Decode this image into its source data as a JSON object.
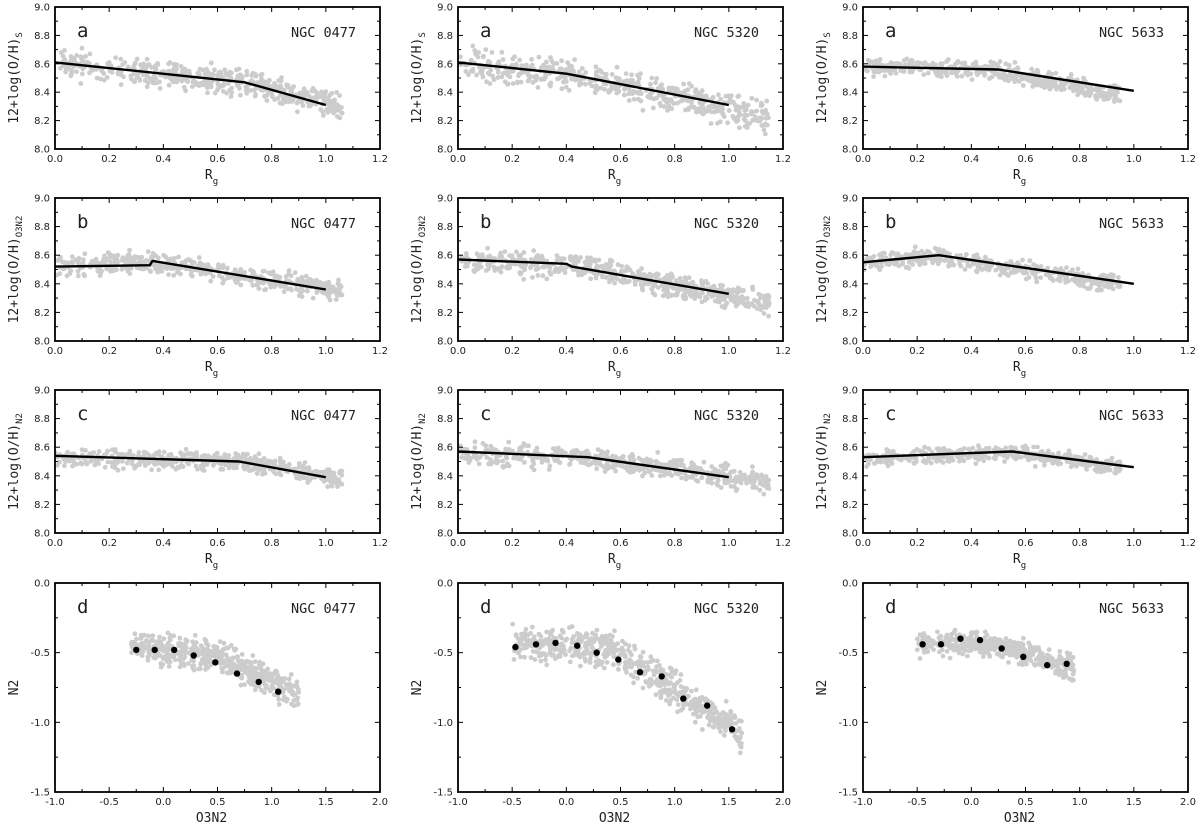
{
  "figure": {
    "galaxies": [
      "NGC 0477",
      "NGC 5320",
      "NGC 5633"
    ],
    "rows": [
      "a",
      "b",
      "c",
      "d"
    ]
  },
  "chart_data": [
    {
      "id": "a-0477",
      "type": "scatter",
      "panel": "a",
      "title": "NGC 0477",
      "xlabel": "R",
      "xlabel_sub": "g",
      "ylabel": "12+log(O/H)",
      "ylabel_sub": "S",
      "xlim": [
        0,
        1.2
      ],
      "ylim": [
        8.0,
        9.0
      ],
      "xticks": [
        0,
        0.2,
        0.4,
        0.6,
        0.8,
        1.0,
        1.2
      ],
      "yticks": [
        8.0,
        8.2,
        8.4,
        8.6,
        8.8,
        9.0
      ],
      "scatter": {
        "trend": [
          [
            0,
            8.6
          ],
          [
            0.7,
            8.47
          ],
          [
            1.05,
            8.3
          ]
        ],
        "xmax": 1.06,
        "spread": 0.06,
        "n": 500,
        "seed": 11
      },
      "line": {
        "x": [
          0,
          0.7,
          1.0
        ],
        "y": [
          8.61,
          8.47,
          8.31
        ]
      }
    },
    {
      "id": "a-5320",
      "type": "scatter",
      "panel": "a",
      "title": "NGC 5320",
      "xlabel": "R",
      "xlabel_sub": "g",
      "ylabel": "12+log(O/H)",
      "ylabel_sub": "S",
      "xlim": [
        0,
        1.2
      ],
      "ylim": [
        8.0,
        9.0
      ],
      "xticks": [
        0,
        0.2,
        0.4,
        0.6,
        0.8,
        1.0,
        1.2
      ],
      "yticks": [
        8.0,
        8.2,
        8.4,
        8.6,
        8.8,
        9.0
      ],
      "scatter": {
        "trend": [
          [
            0,
            8.6
          ],
          [
            0.4,
            8.53
          ],
          [
            1.15,
            8.22
          ]
        ],
        "xmax": 1.15,
        "spread": 0.07,
        "n": 550,
        "seed": 23
      },
      "line": {
        "x": [
          0,
          0.4,
          1.0
        ],
        "y": [
          8.61,
          8.53,
          8.31
        ]
      }
    },
    {
      "id": "a-5633",
      "type": "scatter",
      "panel": "a",
      "title": "NGC 5633",
      "xlabel": "R",
      "xlabel_sub": "g",
      "ylabel": "12+log(O/H)",
      "ylabel_sub": "S",
      "xlim": [
        0,
        1.2
      ],
      "ylim": [
        8.0,
        9.0
      ],
      "xticks": [
        0,
        0.2,
        0.4,
        0.6,
        0.8,
        1.0,
        1.2
      ],
      "yticks": [
        8.0,
        8.2,
        8.4,
        8.6,
        8.8,
        9.0
      ],
      "scatter": {
        "trend": [
          [
            0,
            8.58
          ],
          [
            0.5,
            8.55
          ],
          [
            0.95,
            8.38
          ]
        ],
        "xmax": 0.95,
        "spread": 0.04,
        "n": 420,
        "seed": 37
      },
      "line": {
        "x": [
          0,
          0.5,
          1.0
        ],
        "y": [
          8.58,
          8.56,
          8.41
        ]
      }
    },
    {
      "id": "b-0477",
      "type": "scatter",
      "panel": "b",
      "title": "NGC 0477",
      "xlabel": "R",
      "xlabel_sub": "g",
      "ylabel": "12+log(O/H)",
      "ylabel_sub": "O3N2",
      "xlim": [
        0,
        1.2
      ],
      "ylim": [
        8.0,
        9.0
      ],
      "xticks": [
        0,
        0.2,
        0.4,
        0.6,
        0.8,
        1.0,
        1.2
      ],
      "yticks": [
        8.0,
        8.2,
        8.4,
        8.6,
        8.8,
        9.0
      ],
      "scatter": {
        "trend": [
          [
            0,
            8.52
          ],
          [
            0.36,
            8.55
          ],
          [
            1.05,
            8.35
          ]
        ],
        "xmax": 1.06,
        "spread": 0.045,
        "n": 480,
        "seed": 41
      },
      "line": {
        "x": [
          0,
          0.35,
          0.36,
          1.0
        ],
        "y": [
          8.52,
          8.53,
          8.56,
          8.36
        ]
      }
    },
    {
      "id": "b-5320",
      "type": "scatter",
      "panel": "b",
      "title": "NGC 5320",
      "xlabel": "R",
      "xlabel_sub": "g",
      "ylabel": "12+log(O/H)",
      "ylabel_sub": "O3N2",
      "xlim": [
        0,
        1.2
      ],
      "ylim": [
        8.0,
        9.0
      ],
      "xticks": [
        0,
        0.2,
        0.4,
        0.6,
        0.8,
        1.0,
        1.2
      ],
      "yticks": [
        8.0,
        8.2,
        8.4,
        8.6,
        8.8,
        9.0
      ],
      "scatter": {
        "trend": [
          [
            0,
            8.57
          ],
          [
            0.42,
            8.53
          ],
          [
            1.15,
            8.26
          ]
        ],
        "xmax": 1.15,
        "spread": 0.055,
        "n": 540,
        "seed": 53
      },
      "line": {
        "x": [
          0,
          0.4,
          0.42,
          1.0
        ],
        "y": [
          8.57,
          8.54,
          8.52,
          8.33
        ]
      }
    },
    {
      "id": "b-5633",
      "type": "scatter",
      "panel": "b",
      "title": "NGC 5633",
      "xlabel": "R",
      "xlabel_sub": "g",
      "ylabel": "12+log(O/H)",
      "ylabel_sub": "O3N2",
      "xlim": [
        0,
        1.2
      ],
      "ylim": [
        8.0,
        9.0
      ],
      "xticks": [
        0,
        0.2,
        0.4,
        0.6,
        0.8,
        1.0,
        1.2
      ],
      "yticks": [
        8.0,
        8.2,
        8.4,
        8.6,
        8.8,
        9.0
      ],
      "scatter": {
        "trend": [
          [
            0,
            8.55
          ],
          [
            0.28,
            8.59
          ],
          [
            0.95,
            8.4
          ]
        ],
        "xmax": 0.95,
        "spread": 0.04,
        "n": 420,
        "seed": 67
      },
      "line": {
        "x": [
          0,
          0.28,
          1.0
        ],
        "y": [
          8.55,
          8.6,
          8.4
        ]
      }
    },
    {
      "id": "c-0477",
      "type": "scatter",
      "panel": "c",
      "title": "NGC 0477",
      "xlabel": "R",
      "xlabel_sub": "g",
      "ylabel": "12+log(O/H)",
      "ylabel_sub": "N2",
      "xlim": [
        0,
        1.2
      ],
      "ylim": [
        8.0,
        9.0
      ],
      "xticks": [
        0,
        0.2,
        0.4,
        0.6,
        0.8,
        1.0,
        1.2
      ],
      "yticks": [
        8.0,
        8.2,
        8.4,
        8.6,
        8.8,
        9.0
      ],
      "scatter": {
        "trend": [
          [
            0,
            8.53
          ],
          [
            0.68,
            8.5
          ],
          [
            1.05,
            8.38
          ]
        ],
        "xmax": 1.06,
        "spread": 0.04,
        "n": 480,
        "seed": 71
      },
      "line": {
        "x": [
          0,
          0.68,
          1.0
        ],
        "y": [
          8.54,
          8.5,
          8.39
        ]
      }
    },
    {
      "id": "c-5320",
      "type": "scatter",
      "panel": "c",
      "title": "NGC 5320",
      "xlabel": "R",
      "xlabel_sub": "g",
      "ylabel": "12+log(O/H)",
      "ylabel_sub": "N2",
      "xlim": [
        0,
        1.2
      ],
      "ylim": [
        8.0,
        9.0
      ],
      "xticks": [
        0,
        0.2,
        0.4,
        0.6,
        0.8,
        1.0,
        1.2
      ],
      "yticks": [
        8.0,
        8.2,
        8.4,
        8.6,
        8.8,
        9.0
      ],
      "scatter": {
        "trend": [
          [
            0,
            8.56
          ],
          [
            0.48,
            8.53
          ],
          [
            1.15,
            8.35
          ]
        ],
        "xmax": 1.15,
        "spread": 0.05,
        "n": 540,
        "seed": 83
      },
      "line": {
        "x": [
          0,
          0.48,
          1.0
        ],
        "y": [
          8.57,
          8.53,
          8.39
        ]
      }
    },
    {
      "id": "c-5633",
      "type": "scatter",
      "panel": "c",
      "title": "NGC 5633",
      "xlabel": "R",
      "xlabel_sub": "g",
      "ylabel": "12+log(O/H)",
      "ylabel_sub": "N2",
      "xlim": [
        0,
        1.2
      ],
      "ylim": [
        8.0,
        9.0
      ],
      "xticks": [
        0,
        0.2,
        0.4,
        0.6,
        0.8,
        1.0,
        1.2
      ],
      "yticks": [
        8.0,
        8.2,
        8.4,
        8.6,
        8.8,
        9.0
      ],
      "scatter": {
        "trend": [
          [
            0,
            8.52
          ],
          [
            0.55,
            8.56
          ],
          [
            0.95,
            8.46
          ]
        ],
        "xmax": 0.95,
        "spread": 0.035,
        "n": 420,
        "seed": 97
      },
      "line": {
        "x": [
          0,
          0.55,
          1.0
        ],
        "y": [
          8.53,
          8.57,
          8.46
        ]
      }
    },
    {
      "id": "d-0477",
      "type": "scatter",
      "panel": "d",
      "title": "NGC 0477",
      "xlabel": "O3N2",
      "ylabel": "N2",
      "xlim": [
        -1.0,
        2.0
      ],
      "ylim": [
        -1.5,
        0.0
      ],
      "xticks": [
        -1.0,
        -0.5,
        0.0,
        0.5,
        1.0,
        1.5,
        2.0
      ],
      "yticks": [
        -1.5,
        -1.0,
        -0.5,
        0.0
      ],
      "scatter": {
        "trend": [
          [
            -0.3,
            -0.45
          ],
          [
            0.5,
            -0.52
          ],
          [
            1.2,
            -0.78
          ]
        ],
        "xmin": -0.3,
        "xmax": 1.25,
        "spread": 0.07,
        "n": 500,
        "seed": 101
      },
      "points": {
        "x": [
          -0.25,
          -0.08,
          0.1,
          0.28,
          0.48,
          0.68,
          0.88,
          1.06
        ],
        "y": [
          -0.48,
          -0.48,
          -0.48,
          -0.52,
          -0.57,
          -0.65,
          -0.71,
          -0.78
        ]
      }
    },
    {
      "id": "d-5320",
      "type": "scatter",
      "panel": "d",
      "title": "NGC 5320",
      "xlabel": "O3N2",
      "ylabel": "N2",
      "xlim": [
        -1.0,
        2.0
      ],
      "ylim": [
        -1.5,
        0.0
      ],
      "xticks": [
        -1.0,
        -0.5,
        0.0,
        0.5,
        1.0,
        1.5,
        2.0
      ],
      "yticks": [
        -1.5,
        -1.0,
        -0.5,
        0.0
      ],
      "scatter": {
        "trend": [
          [
            -0.5,
            -0.43
          ],
          [
            0.4,
            -0.47
          ],
          [
            1.6,
            -1.07
          ]
        ],
        "xmin": -0.5,
        "xmax": 1.62,
        "spread": 0.08,
        "n": 600,
        "seed": 113
      },
      "points": {
        "x": [
          -0.47,
          -0.28,
          -0.1,
          0.1,
          0.28,
          0.48,
          0.68,
          0.88,
          1.08,
          1.3,
          1.53
        ],
        "y": [
          -0.46,
          -0.44,
          -0.43,
          -0.45,
          -0.5,
          -0.55,
          -0.64,
          -0.67,
          -0.83,
          -0.88,
          -1.05
        ]
      }
    },
    {
      "id": "d-5633",
      "type": "scatter",
      "panel": "d",
      "title": "NGC 5633",
      "xlabel": "O3N2",
      "ylabel": "N2",
      "xlim": [
        -1.0,
        2.0
      ],
      "ylim": [
        -1.5,
        0.0
      ],
      "xticks": [
        -1.0,
        -0.5,
        0.0,
        0.5,
        1.0,
        1.5,
        2.0
      ],
      "yticks": [
        -1.5,
        -1.0,
        -0.5,
        0.0
      ],
      "scatter": {
        "trend": [
          [
            -0.5,
            -0.43
          ],
          [
            0.2,
            -0.44
          ],
          [
            0.95,
            -0.62
          ]
        ],
        "xmin": -0.5,
        "xmax": 0.95,
        "spread": 0.055,
        "n": 420,
        "seed": 127
      },
      "points": {
        "x": [
          -0.45,
          -0.28,
          -0.1,
          0.08,
          0.28,
          0.48,
          0.7,
          0.88
        ],
        "y": [
          -0.44,
          -0.44,
          -0.4,
          -0.41,
          -0.47,
          -0.53,
          -0.59,
          -0.58
        ]
      }
    }
  ]
}
